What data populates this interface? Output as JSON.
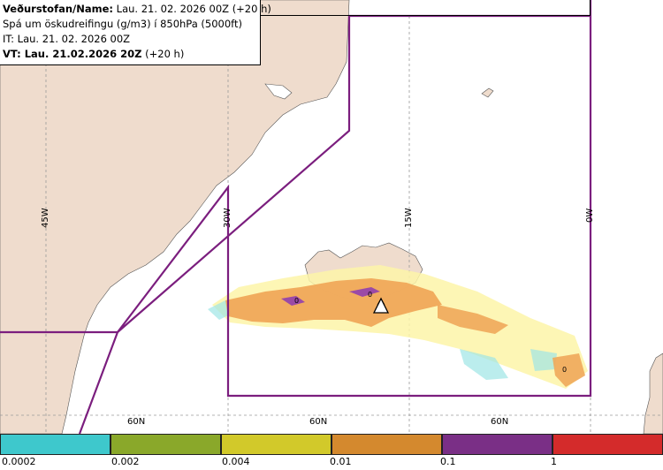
{
  "header": {
    "line1_label": "Veðurstofan/Name:",
    "line1_value": "Lau. 21. 02. 2026 00Z (+20 h)",
    "line2": "Spá um öskudreifingu (g/m3) í 850hPa (5000ft)",
    "line3": "IT: Lau. 21. 02. 2026 00Z",
    "line4_label": "VT: Lau. 21.02.2026 20Z",
    "line4_value": "(+20 h)"
  },
  "grid": {
    "longitudes": [
      "45W",
      "30W",
      "15W",
      "0W"
    ],
    "latitudes": [
      "60N",
      "60N",
      "60N"
    ]
  },
  "volcano": {
    "name": "volcano-marker"
  },
  "legend": {
    "colors": [
      "#3ec8cc",
      "#8aa82a",
      "#d2c92a",
      "#d4892e",
      "#7a2f86",
      "#d42b2b"
    ],
    "labels": [
      "0.0002",
      "0.002",
      "0.004",
      "0.01",
      "0.1",
      "1"
    ]
  },
  "colors": {
    "land": "#efdccd",
    "sea": "#ffffff",
    "boundary": "#7b1e7e",
    "graticule": "#888888"
  }
}
